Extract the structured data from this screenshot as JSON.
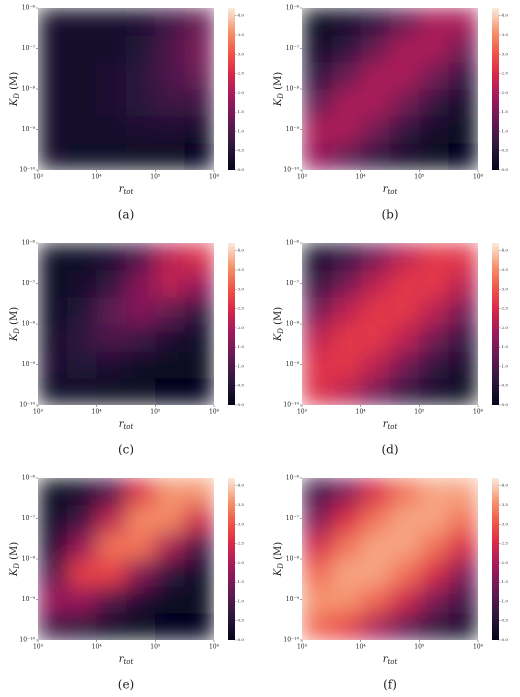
{
  "chart_data": [
    {
      "type": "heatmap",
      "caption": "(a)",
      "xlabel": {
        "base": "r",
        "sub": "tot"
      },
      "ylabel": {
        "base": "K",
        "sub": "D",
        "rest": " (M)"
      },
      "xscale": "log",
      "yscale": "log",
      "xlim": [
        1000,
        1000000
      ],
      "ylim": [
        1e-10,
        1e-06
      ],
      "xticks": [
        {
          "value": 1000,
          "label": "10³"
        },
        {
          "value": 10000,
          "label": "10⁴"
        },
        {
          "value": 100000,
          "label": "10⁵"
        },
        {
          "value": 1000000,
          "label": "10⁶"
        }
      ],
      "yticks": [
        {
          "value": 1e-10,
          "label": "10⁻¹⁰"
        },
        {
          "value": 1e-09,
          "label": "10⁻⁹"
        },
        {
          "value": 1e-08,
          "label": "10⁻⁸"
        },
        {
          "value": 1e-07,
          "label": "10⁻⁷"
        },
        {
          "value": 1e-06,
          "label": "10⁻⁶"
        }
      ],
      "colormap": "rocket",
      "clim": [
        0,
        4.2
      ],
      "cticks": [
        {
          "value": 0,
          "label": "0.0"
        },
        {
          "value": 0.5,
          "label": "0.5"
        },
        {
          "value": 1,
          "label": "1.0"
        },
        {
          "value": 1.5,
          "label": "1.5"
        },
        {
          "value": 2,
          "label": "2.0"
        },
        {
          "value": 2.5,
          "label": "2.5"
        },
        {
          "value": 3,
          "label": "3.0"
        },
        {
          "value": 3.5,
          "label": "3.5"
        },
        {
          "value": 4,
          "label": "4.0"
        }
      ],
      "values": [
        [
          0.3,
          0.2,
          0.2,
          0.1,
          0.1,
          0.0
        ],
        [
          0.3,
          0.3,
          0.3,
          0.4,
          0.4,
          0.3
        ],
        [
          0.3,
          0.3,
          0.4,
          0.6,
          0.8,
          0.8
        ],
        [
          0.3,
          0.3,
          0.4,
          0.6,
          1.0,
          1.3
        ],
        [
          0.3,
          0.3,
          0.3,
          0.5,
          1.0,
          1.5
        ],
        [
          0.3,
          0.3,
          0.3,
          0.4,
          0.8,
          1.3
        ]
      ]
    },
    {
      "type": "heatmap",
      "caption": "(b)",
      "xlabel": {
        "base": "r",
        "sub": "tot"
      },
      "ylabel": {
        "base": "K",
        "sub": "D",
        "rest": " (M)"
      },
      "xscale": "log",
      "yscale": "log",
      "xlim": [
        1000,
        1000000
      ],
      "ylim": [
        1e-10,
        1e-06
      ],
      "xticks": [
        {
          "value": 1000,
          "label": "10³"
        },
        {
          "value": 10000,
          "label": "10⁴"
        },
        {
          "value": 100000,
          "label": "10⁵"
        },
        {
          "value": 1000000,
          "label": "10⁶"
        }
      ],
      "yticks": [
        {
          "value": 1e-10,
          "label": "10⁻¹⁰"
        },
        {
          "value": 1e-09,
          "label": "10⁻⁹"
        },
        {
          "value": 1e-08,
          "label": "10⁻⁸"
        },
        {
          "value": 1e-07,
          "label": "10⁻⁷"
        },
        {
          "value": 1e-06,
          "label": "10⁻⁶"
        }
      ],
      "colormap": "rocket",
      "clim": [
        0,
        4.2
      ],
      "cticks": [
        {
          "value": 0,
          "label": "0.0"
        },
        {
          "value": 0.5,
          "label": "0.5"
        },
        {
          "value": 1,
          "label": "1.0"
        },
        {
          "value": 1.5,
          "label": "1.5"
        },
        {
          "value": 2,
          "label": "2.0"
        },
        {
          "value": 2.5,
          "label": "2.5"
        },
        {
          "value": 3,
          "label": "3.0"
        },
        {
          "value": 3.5,
          "label": "3.5"
        },
        {
          "value": 4,
          "label": "4.0"
        }
      ],
      "values": [
        [
          1.8,
          1.2,
          0.6,
          0.3,
          0.1,
          0.0
        ],
        [
          2.0,
          2.0,
          1.4,
          0.7,
          0.3,
          0.1
        ],
        [
          1.2,
          2.0,
          2.0,
          1.4,
          0.7,
          0.3
        ],
        [
          0.6,
          1.3,
          2.0,
          2.0,
          1.4,
          0.7
        ],
        [
          0.3,
          0.6,
          1.3,
          2.0,
          2.0,
          1.4
        ],
        [
          0.1,
          0.3,
          0.6,
          1.3,
          2.0,
          2.0
        ]
      ]
    },
    {
      "type": "heatmap",
      "caption": "(c)",
      "xlabel": {
        "base": "r",
        "sub": "tot"
      },
      "ylabel": {
        "base": "K",
        "sub": "D",
        "rest": " (M)"
      },
      "xscale": "log",
      "yscale": "log",
      "xlim": [
        1000,
        1000000
      ],
      "ylim": [
        1e-10,
        1e-06
      ],
      "xticks": [
        {
          "value": 1000,
          "label": "10³"
        },
        {
          "value": 10000,
          "label": "10⁴"
        },
        {
          "value": 100000,
          "label": "10⁵"
        },
        {
          "value": 1000000,
          "label": "10⁶"
        }
      ],
      "yticks": [
        {
          "value": 1e-10,
          "label": "10⁻¹⁰"
        },
        {
          "value": 1e-09,
          "label": "10⁻⁹"
        },
        {
          "value": 1e-08,
          "label": "10⁻⁸"
        },
        {
          "value": 1e-07,
          "label": "10⁻⁷"
        },
        {
          "value": 1e-06,
          "label": "10⁻⁶"
        }
      ],
      "colormap": "rocket",
      "clim": [
        0,
        4.2
      ],
      "cticks": [
        {
          "value": 0,
          "label": "0.0"
        },
        {
          "value": 0.5,
          "label": "0.5"
        },
        {
          "value": 1,
          "label": "1.0"
        },
        {
          "value": 1.5,
          "label": "1.5"
        },
        {
          "value": 2,
          "label": "2.0"
        },
        {
          "value": 2.5,
          "label": "2.5"
        },
        {
          "value": 3,
          "label": "3.0"
        },
        {
          "value": 3.5,
          "label": "3.5"
        },
        {
          "value": 4,
          "label": "4.0"
        }
      ],
      "values": [
        [
          0.2,
          0.2,
          0.1,
          0.1,
          0.0,
          0.0
        ],
        [
          0.4,
          0.5,
          0.4,
          0.2,
          0.1,
          0.1
        ],
        [
          0.3,
          0.7,
          1.0,
          0.8,
          0.4,
          0.2
        ],
        [
          0.2,
          0.5,
          1.2,
          1.6,
          1.2,
          0.6
        ],
        [
          0.2,
          0.3,
          0.7,
          1.6,
          2.2,
          1.8
        ],
        [
          0.2,
          0.2,
          0.4,
          1.0,
          2.2,
          2.6
        ]
      ]
    },
    {
      "type": "heatmap",
      "caption": "(d)",
      "xlabel": {
        "base": "r",
        "sub": "tot"
      },
      "ylabel": {
        "base": "K",
        "sub": "D",
        "rest": " (M)"
      },
      "xscale": "log",
      "yscale": "log",
      "xlim": [
        1000,
        1000000
      ],
      "ylim": [
        1e-10,
        1e-06
      ],
      "xticks": [
        {
          "value": 1000,
          "label": "10³"
        },
        {
          "value": 10000,
          "label": "10⁴"
        },
        {
          "value": 100000,
          "label": "10⁵"
        },
        {
          "value": 1000000,
          "label": "10⁶"
        }
      ],
      "yticks": [
        {
          "value": 1e-10,
          "label": "10⁻¹⁰"
        },
        {
          "value": 1e-09,
          "label": "10⁻⁹"
        },
        {
          "value": 1e-08,
          "label": "10⁻⁸"
        },
        {
          "value": 1e-07,
          "label": "10⁻⁷"
        },
        {
          "value": 1e-06,
          "label": "10⁻⁶"
        }
      ],
      "colormap": "rocket",
      "clim": [
        0,
        4.2
      ],
      "cticks": [
        {
          "value": 0,
          "label": "0.0"
        },
        {
          "value": 0.5,
          "label": "0.5"
        },
        {
          "value": 1,
          "label": "1.0"
        },
        {
          "value": 1.5,
          "label": "1.5"
        },
        {
          "value": 2,
          "label": "2.0"
        },
        {
          "value": 2.5,
          "label": "2.5"
        },
        {
          "value": 3,
          "label": "3.0"
        },
        {
          "value": 3.5,
          "label": "3.5"
        },
        {
          "value": 4,
          "label": "4.0"
        }
      ],
      "values": [
        [
          2.6,
          2.2,
          1.4,
          0.7,
          0.3,
          0.1
        ],
        [
          2.6,
          2.7,
          2.2,
          1.4,
          0.7,
          0.3
        ],
        [
          2.2,
          2.7,
          2.7,
          2.2,
          1.4,
          0.7
        ],
        [
          1.4,
          2.2,
          2.7,
          2.7,
          2.2,
          1.4
        ],
        [
          0.7,
          1.4,
          2.2,
          2.7,
          2.7,
          2.2
        ],
        [
          0.3,
          0.7,
          1.4,
          2.2,
          2.7,
          2.7
        ]
      ]
    },
    {
      "type": "heatmap",
      "caption": "(e)",
      "xlabel": {
        "base": "r",
        "sub": "tot"
      },
      "ylabel": {
        "base": "K",
        "sub": "D",
        "rest": " (M)"
      },
      "xscale": "log",
      "yscale": "log",
      "xlim": [
        1000,
        1000000
      ],
      "ylim": [
        1e-10,
        1e-06
      ],
      "xticks": [
        {
          "value": 1000,
          "label": "10³"
        },
        {
          "value": 10000,
          "label": "10⁴"
        },
        {
          "value": 100000,
          "label": "10⁵"
        },
        {
          "value": 1000000,
          "label": "10⁶"
        }
      ],
      "yticks": [
        {
          "value": 1e-10,
          "label": "10⁻¹⁰"
        },
        {
          "value": 1e-09,
          "label": "10⁻⁹"
        },
        {
          "value": 1e-08,
          "label": "10⁻⁸"
        },
        {
          "value": 1e-07,
          "label": "10⁻⁷"
        },
        {
          "value": 1e-06,
          "label": "10⁻⁶"
        }
      ],
      "colormap": "rocket",
      "clim": [
        0,
        4.2
      ],
      "cticks": [
        {
          "value": 0,
          "label": "0.0"
        },
        {
          "value": 0.5,
          "label": "0.5"
        },
        {
          "value": 1,
          "label": "1.0"
        },
        {
          "value": 1.5,
          "label": "1.5"
        },
        {
          "value": 2,
          "label": "2.0"
        },
        {
          "value": 2.5,
          "label": "2.5"
        },
        {
          "value": 3,
          "label": "3.0"
        },
        {
          "value": 3.5,
          "label": "3.5"
        },
        {
          "value": 4,
          "label": "4.0"
        }
      ],
      "values": [
        [
          0.8,
          0.5,
          0.2,
          0.1,
          0.0,
          0.0
        ],
        [
          1.8,
          1.8,
          1.0,
          0.4,
          0.2,
          0.1
        ],
        [
          1.0,
          2.8,
          2.8,
          1.6,
          0.6,
          0.2
        ],
        [
          0.4,
          1.8,
          3.3,
          3.3,
          2.0,
          0.8
        ],
        [
          0.2,
          0.8,
          2.2,
          3.5,
          3.5,
          2.4
        ],
        [
          0.1,
          0.3,
          1.0,
          2.6,
          3.6,
          3.6
        ]
      ]
    },
    {
      "type": "heatmap",
      "caption": "(f)",
      "xlabel": {
        "base": "r",
        "sub": "tot"
      },
      "ylabel": {
        "base": "K",
        "sub": "D",
        "rest": " (M)"
      },
      "xscale": "log",
      "yscale": "log",
      "xlim": [
        1000,
        1000000
      ],
      "ylim": [
        1e-10,
        1e-06
      ],
      "xticks": [
        {
          "value": 1000,
          "label": "10³"
        },
        {
          "value": 10000,
          "label": "10⁴"
        },
        {
          "value": 100000,
          "label": "10⁵"
        },
        {
          "value": 1000000,
          "label": "10⁶"
        }
      ],
      "yticks": [
        {
          "value": 1e-10,
          "label": "10⁻¹⁰"
        },
        {
          "value": 1e-09,
          "label": "10⁻⁹"
        },
        {
          "value": 1e-08,
          "label": "10⁻⁸"
        },
        {
          "value": 1e-07,
          "label": "10⁻⁷"
        },
        {
          "value": 1e-06,
          "label": "10⁻⁶"
        }
      ],
      "colormap": "rocket",
      "clim": [
        0,
        4.2
      ],
      "cticks": [
        {
          "value": 0,
          "label": "0.0"
        },
        {
          "value": 0.5,
          "label": "0.5"
        },
        {
          "value": 1,
          "label": "1.0"
        },
        {
          "value": 1.5,
          "label": "1.5"
        },
        {
          "value": 2,
          "label": "2.0"
        },
        {
          "value": 2.5,
          "label": "2.5"
        },
        {
          "value": 3,
          "label": "3.0"
        },
        {
          "value": 3.5,
          "label": "3.5"
        },
        {
          "value": 4,
          "label": "4.0"
        }
      ],
      "values": [
        [
          3.2,
          2.8,
          2.0,
          1.2,
          0.6,
          0.3
        ],
        [
          3.6,
          3.6,
          3.2,
          2.4,
          1.5,
          0.8
        ],
        [
          3.2,
          3.7,
          3.7,
          3.3,
          2.5,
          1.5
        ],
        [
          2.4,
          3.3,
          3.7,
          3.7,
          3.3,
          2.5
        ],
        [
          1.5,
          2.5,
          3.3,
          3.7,
          3.7,
          3.3
        ],
        [
          0.8,
          1.5,
          2.5,
          3.3,
          3.7,
          3.7
        ]
      ]
    }
  ]
}
